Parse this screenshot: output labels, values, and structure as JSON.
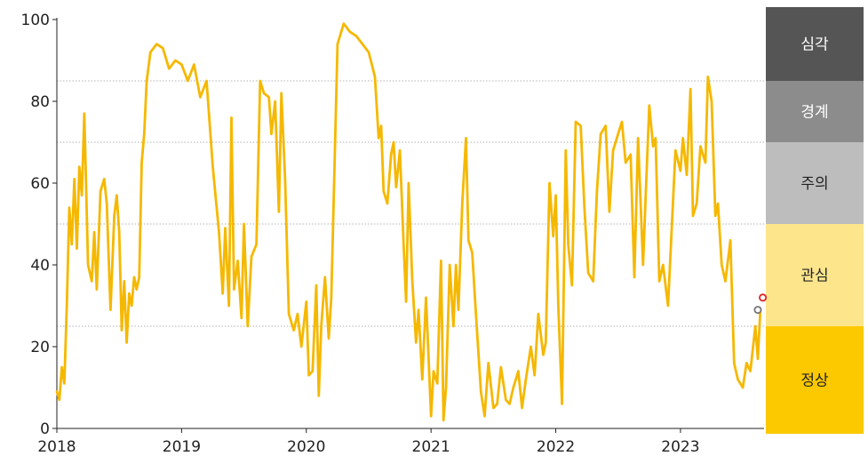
{
  "chart_data": {
    "type": "line",
    "title": "",
    "xlabel": "",
    "ylabel": "",
    "xlim": [
      2018.0,
      2023.67
    ],
    "ylim": [
      0,
      100
    ],
    "x_ticks": [
      "2018",
      "2019",
      "2020",
      "2021",
      "2022",
      "2023"
    ],
    "y_ticks": [
      "0",
      "20",
      "40",
      "60",
      "80",
      "100"
    ],
    "grid": "dotted horizontal lines at band thresholds",
    "legend": "none",
    "bands": [
      {
        "label": "심각",
        "from": 85,
        "to": 100,
        "color": "#555555",
        "text_color": "#ffffff"
      },
      {
        "label": "경계",
        "from": 70,
        "to": 85,
        "color": "#8c8c8c",
        "text_color": "#ffffff"
      },
      {
        "label": "주의",
        "from": 50,
        "to": 70,
        "color": "#bdbdbd",
        "text_color": "#222222"
      },
      {
        "label": "관심",
        "from": 25,
        "to": 50,
        "color": "#fde58c",
        "text_color": "#222222"
      },
      {
        "label": "정상",
        "from": 0,
        "to": 25,
        "color": "#fcc900",
        "text_color": "#222222"
      }
    ],
    "series": [
      {
        "color": "#f5b800",
        "x": [
          2018.0,
          2018.02,
          2018.04,
          2018.06,
          2018.08,
          2018.1,
          2018.12,
          2018.14,
          2018.16,
          2018.18,
          2018.2,
          2018.22,
          2018.25,
          2018.28,
          2018.3,
          2018.32,
          2018.35,
          2018.38,
          2018.4,
          2018.43,
          2018.46,
          2018.48,
          2018.5,
          2018.52,
          2018.54,
          2018.56,
          2018.58,
          2018.6,
          2018.62,
          2018.64,
          2018.66,
          2018.68,
          2018.7,
          2018.72,
          2018.75,
          2018.8,
          2018.85,
          2018.9,
          2018.95,
          2019.0,
          2019.05,
          2019.1,
          2019.15,
          2019.2,
          2019.25,
          2019.3,
          2019.33,
          2019.35,
          2019.38,
          2019.4,
          2019.42,
          2019.45,
          2019.48,
          2019.5,
          2019.53,
          2019.56,
          2019.6,
          2019.63,
          2019.66,
          2019.7,
          2019.72,
          2019.75,
          2019.78,
          2019.8,
          2019.83,
          2019.86,
          2019.9,
          2019.93,
          2019.96,
          2020.0,
          2020.02,
          2020.05,
          2020.08,
          2020.1,
          2020.12,
          2020.15,
          2020.18,
          2020.2,
          2020.25,
          2020.3,
          2020.35,
          2020.4,
          2020.45,
          2020.5,
          2020.55,
          2020.58,
          2020.6,
          2020.62,
          2020.65,
          2020.68,
          2020.7,
          2020.72,
          2020.75,
          2020.78,
          2020.8,
          2020.82,
          2020.85,
          2020.88,
          2020.9,
          2020.93,
          2020.96,
          2021.0,
          2021.02,
          2021.05,
          2021.08,
          2021.1,
          2021.12,
          2021.15,
          2021.18,
          2021.2,
          2021.22,
          2021.25,
          2021.28,
          2021.3,
          2021.33,
          2021.36,
          2021.4,
          2021.43,
          2021.46,
          2021.5,
          2021.53,
          2021.56,
          2021.6,
          2021.63,
          2021.66,
          2021.7,
          2021.73,
          2021.76,
          2021.8,
          2021.83,
          2021.86,
          2021.9,
          2021.92,
          2021.95,
          2021.98,
          2022.0,
          2022.02,
          2022.05,
          2022.08,
          2022.1,
          2022.13,
          2022.16,
          2022.2,
          2022.23,
          2022.26,
          2022.3,
          2022.33,
          2022.36,
          2022.4,
          2022.43,
          2022.46,
          2022.5,
          2022.53,
          2022.56,
          2022.6,
          2022.63,
          2022.66,
          2022.7,
          2022.72,
          2022.75,
          2022.78,
          2022.8,
          2022.83,
          2022.86,
          2022.9,
          2022.93,
          2022.96,
          2023.0,
          2023.02,
          2023.05,
          2023.08,
          2023.1,
          2023.13,
          2023.16,
          2023.2,
          2023.22,
          2023.25,
          2023.28,
          2023.3,
          2023.33,
          2023.36,
          2023.4,
          2023.43,
          2023.46,
          2023.5,
          2023.53,
          2023.56,
          2023.6,
          2023.62,
          2023.64
        ],
        "values": [
          9,
          7,
          15,
          11,
          30,
          54,
          45,
          61,
          44,
          64,
          57,
          77,
          40,
          36,
          48,
          34,
          58,
          61,
          55,
          29,
          52,
          57,
          48,
          24,
          36,
          21,
          33,
          30,
          37,
          34,
          37,
          65,
          72,
          85,
          92,
          94,
          93,
          88,
          90,
          89,
          85,
          89,
          81,
          85,
          64,
          48,
          33,
          49,
          30,
          76,
          34,
          41,
          27,
          50,
          25,
          42,
          45,
          85,
          82,
          81,
          72,
          80,
          53,
          82,
          61,
          28,
          24,
          28,
          20,
          31,
          13,
          14,
          35,
          8,
          25,
          37,
          22,
          32,
          94,
          99,
          97,
          96,
          94,
          92,
          86,
          71,
          74,
          58,
          55,
          67,
          70,
          59,
          68,
          45,
          31,
          60,
          36,
          21,
          29,
          12,
          32,
          3,
          14,
          11,
          41,
          2,
          10,
          40,
          25,
          40,
          29,
          55,
          71,
          46,
          43,
          28,
          9,
          3,
          16,
          5,
          6,
          15,
          7,
          6,
          10,
          14,
          5,
          12,
          20,
          13,
          28,
          18,
          21,
          60,
          47,
          57,
          30,
          6,
          68,
          45,
          35,
          75,
          74,
          54,
          38,
          36,
          58,
          72,
          74,
          53,
          68,
          72,
          75,
          65,
          67,
          37,
          71,
          40,
          56,
          79,
          69,
          71,
          36,
          40,
          30,
          49,
          68,
          63,
          71,
          62,
          83,
          52,
          55,
          69,
          65,
          86,
          80,
          52,
          55,
          40,
          36,
          46,
          16,
          12,
          10,
          16,
          14,
          25,
          17,
          29
        ]
      }
    ],
    "markers": [
      {
        "x": 2023.62,
        "value": 29,
        "color": "#777777"
      },
      {
        "x": 2023.66,
        "value": 32,
        "color": "#e02020"
      }
    ]
  }
}
